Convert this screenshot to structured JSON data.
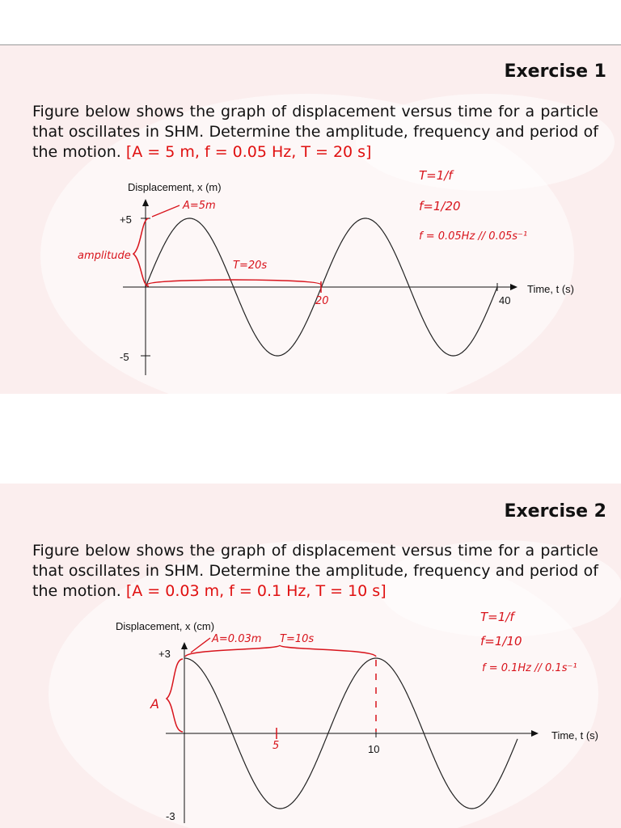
{
  "exercise1": {
    "title": "Exercise 1",
    "question": "Figure below shows the graph of displacement versus time for a particle that oscillates in SHM. Determine the amplitude, frequency and period of the motion.",
    "answer": "[A = 5 m, f = 0.05 Hz, T = 20 s]",
    "graph": {
      "y_label": "Displacement, x (m)",
      "x_label": "Time, t (s)",
      "y_ticks": [
        "+5",
        "-5"
      ],
      "x_ticks": [
        "40"
      ]
    },
    "notes": {
      "amplitude_arrow": "A=5m",
      "amplitude": "amplitude",
      "period": "T=20s",
      "x_mark": "20",
      "formula1": "T=1/f",
      "formula2": "f=1/20",
      "result": "f = 0.05Hz // 0.05s⁻¹"
    }
  },
  "exercise2": {
    "title": "Exercise 2",
    "question": "Figure below shows the graph of displacement versus time for a particle that oscillates in SHM. Determine the amplitude, frequency and period of the motion.",
    "answer": "[A = 0.03 m, f = 0.1 Hz, T = 10 s]",
    "graph": {
      "y_label": "Displacement, x (cm)",
      "x_label": "Time, t (s)",
      "y_ticks": [
        "+3",
        "-3"
      ],
      "x_ticks": [
        "10"
      ]
    },
    "notes": {
      "amplitude_arrow": "A=0.03m",
      "amplitude": "A",
      "period": "T=10s",
      "x_mark": "5",
      "formula1": "T=1/f",
      "formula2": "f=1/10",
      "result": "f = 0.1Hz // 0.1s⁻¹"
    }
  }
}
